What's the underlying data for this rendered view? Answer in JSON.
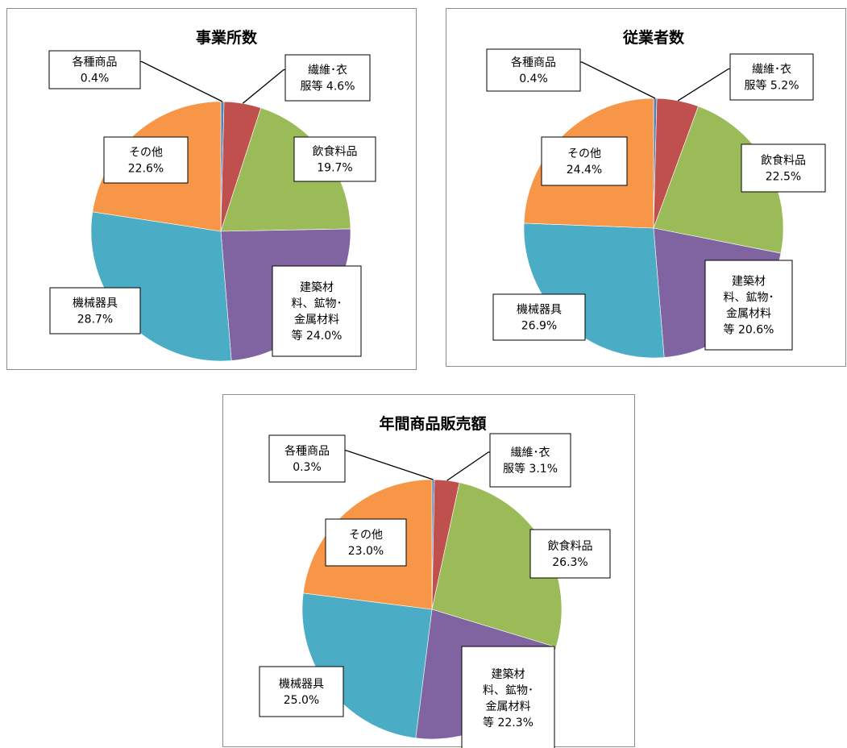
{
  "colors": {
    "各種商品": "#4f81bd",
    "繊維・衣服等": "#c0504d",
    "飲食料品": "#9bbb59",
    "建築材料、鉱物・金属材料等": "#8064a2",
    "機械器具": "#4bacc6",
    "その他": "#f79646"
  },
  "chart_data": [
    {
      "type": "pie",
      "title": "事業所数",
      "slices": [
        {
          "name": "各種商品",
          "value": 0.4,
          "label_lines": [
            "各種商品",
            "0.4%"
          ]
        },
        {
          "name": "繊維・衣服等",
          "value": 4.6,
          "label_lines": [
            "繊維･衣",
            "服等 4.6%"
          ]
        },
        {
          "name": "飲食料品",
          "value": 19.7,
          "label_lines": [
            "飲食料品",
            "19.7%"
          ]
        },
        {
          "name": "建築材料、鉱物・金属材料等",
          "value": 24.0,
          "label_lines": [
            "建築材",
            "料、鉱物･",
            "金属材料",
            "等 24.0%"
          ]
        },
        {
          "name": "機械器具",
          "value": 28.7,
          "label_lines": [
            "機械器具",
            "28.7%"
          ]
        },
        {
          "name": "その他",
          "value": 22.6,
          "label_lines": [
            "その他",
            "22.6%"
          ]
        }
      ]
    },
    {
      "type": "pie",
      "title": "従業者数",
      "slices": [
        {
          "name": "各種商品",
          "value": 0.4,
          "label_lines": [
            "各種商品",
            "0.4%"
          ]
        },
        {
          "name": "繊維・衣服等",
          "value": 5.2,
          "label_lines": [
            "繊維･衣",
            "服等 5.2%"
          ]
        },
        {
          "name": "飲食料品",
          "value": 22.5,
          "label_lines": [
            "飲食料品",
            "22.5%"
          ]
        },
        {
          "name": "建築材料、鉱物・金属材料等",
          "value": 20.6,
          "label_lines": [
            "建築材",
            "料、鉱物･",
            "金属材料",
            "等 20.6%"
          ]
        },
        {
          "name": "機械器具",
          "value": 26.9,
          "label_lines": [
            "機械器具",
            "26.9%"
          ]
        },
        {
          "name": "その他",
          "value": 24.4,
          "label_lines": [
            "その他",
            "24.4%"
          ]
        }
      ]
    },
    {
      "type": "pie",
      "title": "年間商品販売額",
      "slices": [
        {
          "name": "各種商品",
          "value": 0.3,
          "label_lines": [
            "各種商品",
            "0.3%"
          ]
        },
        {
          "name": "繊維・衣服等",
          "value": 3.1,
          "label_lines": [
            "繊維･衣",
            "服等 3.1%"
          ]
        },
        {
          "name": "飲食料品",
          "value": 26.3,
          "label_lines": [
            "飲食料品",
            "26.3%"
          ]
        },
        {
          "name": "建築材料、鉱物・金属材料等",
          "value": 22.3,
          "label_lines": [
            "建築材",
            "料、鉱物･",
            "金属材料",
            "等 22.3%"
          ]
        },
        {
          "name": "機械器具",
          "value": 25.0,
          "label_lines": [
            "機械器具",
            "25.0%"
          ]
        },
        {
          "name": "その他",
          "value": 23.0,
          "label_lines": [
            "その他",
            "23.0%"
          ]
        }
      ]
    }
  ]
}
